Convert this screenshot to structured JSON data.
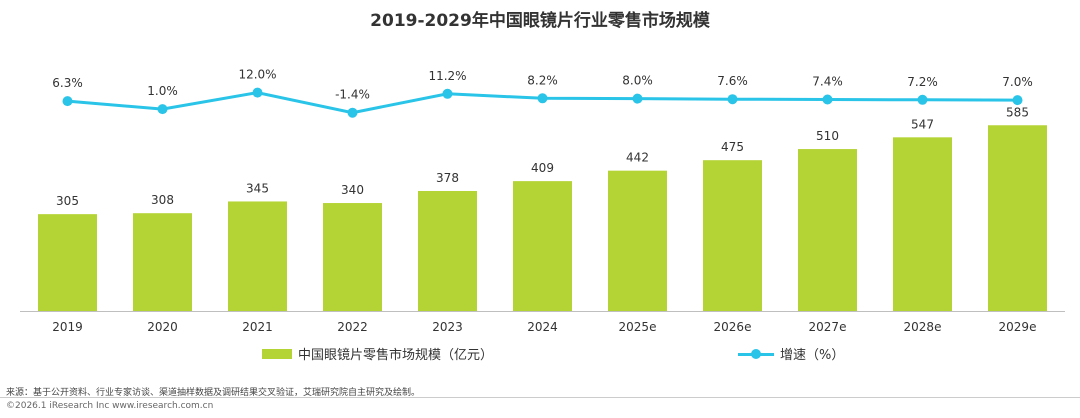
{
  "chart_data": {
    "type": "bar",
    "title": "2019-2029年中国眼镜片行业零售市场规模",
    "categories": [
      "2019",
      "2020",
      "2021",
      "2022",
      "2023",
      "2024",
      "2025e",
      "2026e",
      "2027e",
      "2028e",
      "2029e"
    ],
    "series": [
      {
        "name": "中国眼镜片零售市场规模（亿元）",
        "type": "bar",
        "color": "#b4d334",
        "values": [
          305,
          308,
          345,
          340,
          378,
          409,
          442,
          475,
          510,
          547,
          585
        ],
        "labels": [
          "305",
          "308",
          "345",
          "340",
          "378",
          "409",
          "442",
          "475",
          "510",
          "547",
          "585"
        ]
      },
      {
        "name": "增速（%）",
        "type": "line",
        "color": "#29c4e8",
        "values": [
          6.3,
          1.0,
          12.0,
          -1.4,
          11.2,
          8.2,
          8.0,
          7.6,
          7.4,
          7.2,
          7.0
        ],
        "labels": [
          "6.3%",
          "1.0%",
          "12.0%",
          "-1.4%",
          "11.2%",
          "8.2%",
          "8.0%",
          "7.6%",
          "7.4%",
          "7.2%",
          "7.0%"
        ]
      }
    ],
    "legend_position": "bottom",
    "grid": false
  },
  "footer": {
    "source": "来源：基于公开资料、行业专家访谈、渠道抽样数据及调研结果交叉验证，艾瑞研究院自主研究及绘制。",
    "copyright": "©2026.1 iResearch Inc www.iresearch.com.cn"
  }
}
